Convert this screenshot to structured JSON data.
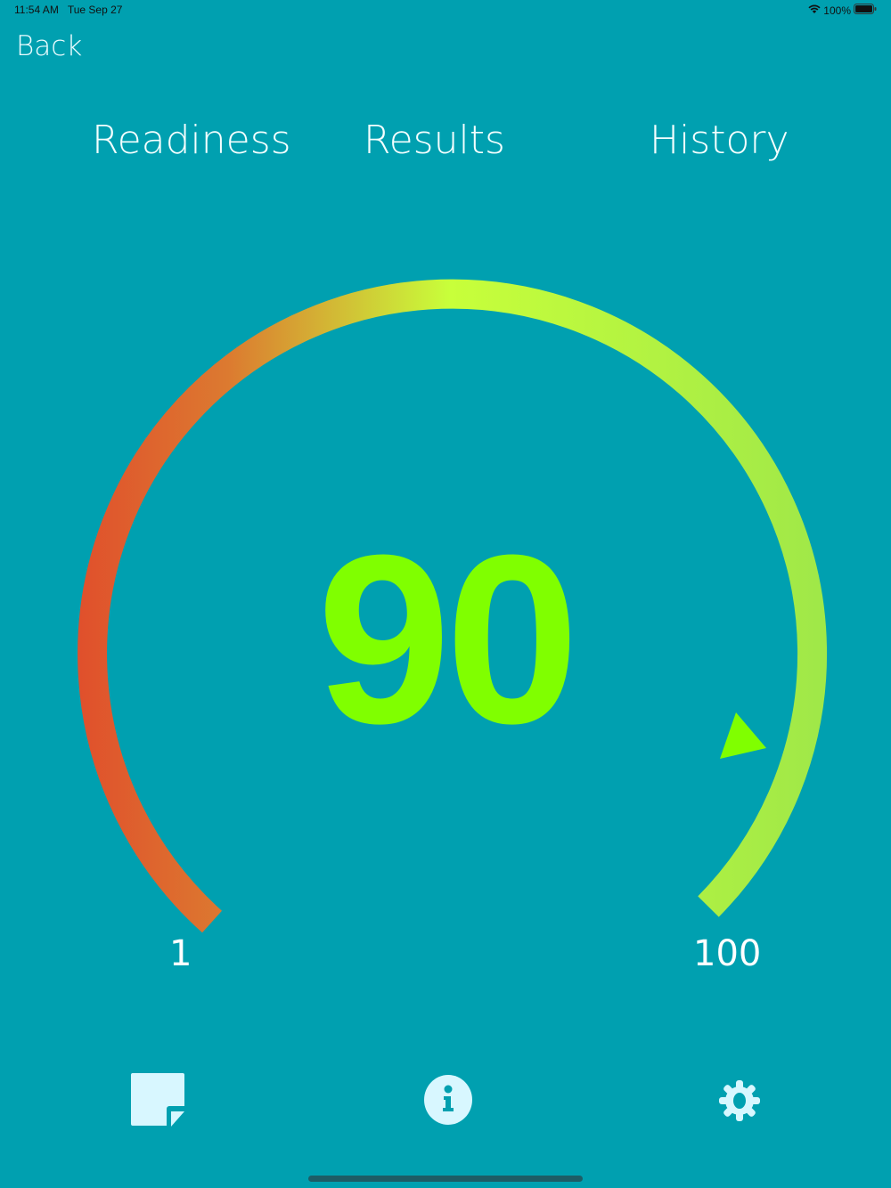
{
  "status_bar": {
    "time": "11:54 AM",
    "date": "Tue Sep 27",
    "battery": "100%"
  },
  "nav": {
    "back_label": "Back"
  },
  "tabs": [
    {
      "label": "Readiness"
    },
    {
      "label": "Results"
    },
    {
      "label": "History"
    }
  ],
  "gauge": {
    "value": "90",
    "min_label": "1",
    "max_label": "100",
    "value_number": 90,
    "min": 1,
    "max": 100,
    "colors": {
      "low": "#e0502c",
      "mid": "#c8ff3a",
      "high": "#a0e848",
      "value": "#80ff00"
    }
  },
  "toolbar": {
    "icons": [
      "note-icon",
      "info-icon",
      "gear-icon"
    ]
  }
}
